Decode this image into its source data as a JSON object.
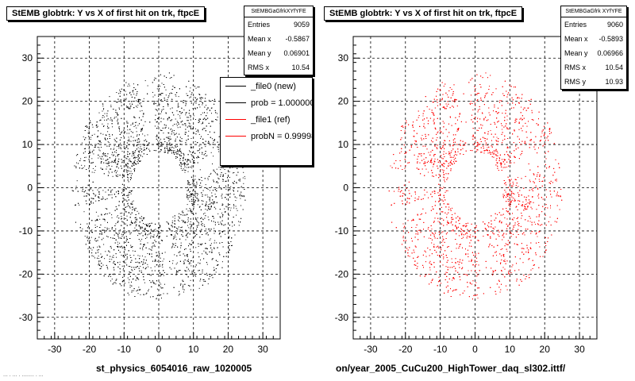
{
  "chart_data": [
    {
      "type": "scatter",
      "title": "StEMB globtrk: Y vs X of first hit on trk, ftpcE",
      "xlim": [
        -35,
        35
      ],
      "ylim": [
        -35,
        35
      ],
      "xticks": [
        -30,
        -20,
        -10,
        0,
        10,
        20,
        30
      ],
      "yticks": [
        -30,
        -20,
        -10,
        0,
        10,
        20,
        30
      ],
      "grid": true,
      "color": "#000000",
      "pattern": "annular ring of hits, inner radius ~8, outer radius ~25, with radial sector gaps",
      "stats": {
        "header": "StEMBGaGfrkXYfYFE",
        "rows": [
          {
            "label": "Entries",
            "value": "9059"
          },
          {
            "label": "Mean x",
            "value": "-0.5867"
          },
          {
            "label": "Mean y",
            "value": "0.06901"
          },
          {
            "label": "RMS x",
            "value": "10.54"
          }
        ]
      },
      "legend": [
        {
          "label": "_file0 (new)",
          "color": "#000000"
        },
        {
          "label": "prob = 1.000000",
          "color": "#000000"
        },
        {
          "label": "_file1 (ref)",
          "color": "#ff0000"
        },
        {
          "label": "probN = 0.999987",
          "color": "#ff0000"
        }
      ],
      "footer": "st_physics_6054016_raw_1020005"
    },
    {
      "type": "scatter",
      "title": "StEMB globtrk: Y vs X of first hit on trk, ftpcE",
      "xlim": [
        -35,
        35
      ],
      "ylim": [
        -35,
        35
      ],
      "xticks": [
        -30,
        -20,
        -10,
        0,
        10,
        20,
        30
      ],
      "yticks": [
        -30,
        -20,
        -10,
        0,
        10,
        20,
        30
      ],
      "grid": true,
      "color": "#ff0000",
      "pattern": "annular ring of hits, inner radius ~8, outer radius ~25, with radial sector gaps",
      "stats": {
        "header": "StEMBGaGfrk XYfYFE",
        "rows": [
          {
            "label": "Entries",
            "value": "9060"
          },
          {
            "label": "Mean x",
            "value": "-0.5893"
          },
          {
            "label": "Mean y",
            "value": "0.06966"
          },
          {
            "label": "RMS x",
            "value": "10.54"
          },
          {
            "label": "RMS y",
            "value": "10.93"
          }
        ]
      },
      "footer": "on/year_2005_CuCu200_HighTower_daq_sl302.ittf/"
    }
  ],
  "corner_text": "... . ... . ........ . ..."
}
